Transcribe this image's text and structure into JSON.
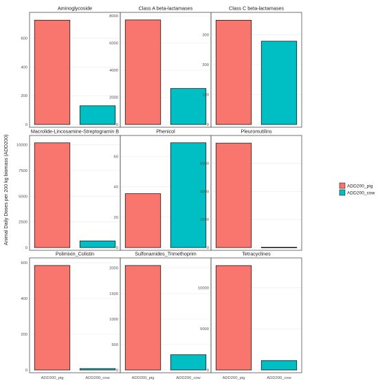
{
  "chart_data": {
    "type": "bar",
    "ylabel": "Animal Daily Doses per 200 kg biomass (ADD200)",
    "categories": [
      "ADD200_pig",
      "ADD200_cow"
    ],
    "colors": {
      "ADD200_pig": "#F8766D",
      "ADD200_cow": "#00BFC4"
    },
    "legend": {
      "position": "right",
      "entries": [
        "ADD200_pig",
        "ADD200_cow"
      ]
    },
    "grid": true,
    "panels": [
      {
        "title": "Aminoglycoside",
        "values": [
          725,
          130
        ],
        "ylim": [
          0,
          760
        ],
        "ticks": [
          0,
          200,
          400,
          600
        ]
      },
      {
        "title": "Class A beta-lactamases",
        "values": [
          7700,
          2650
        ],
        "ylim": [
          0,
          8050
        ],
        "ticks": [
          0,
          2000,
          4000,
          6000,
          8000
        ]
      },
      {
        "title": "Class C beta-lactamases",
        "values": [
          348,
          278
        ],
        "ylim": [
          0,
          365
        ],
        "ticks": [
          0,
          100,
          200,
          300
        ]
      },
      {
        "title": "Macrolide-Lincosamine-Streptogramin B",
        "values": [
          10200,
          650
        ],
        "ylim": [
          0,
          10650
        ],
        "ticks": [
          0,
          2500,
          5000,
          7500,
          10000
        ]
      },
      {
        "title": "Phenicol",
        "values": [
          35.5,
          69
        ],
        "ylim": [
          0,
          72
        ],
        "ticks": [
          0,
          20,
          40,
          60
        ]
      },
      {
        "title": "Pleuromutilins",
        "values": [
          7450,
          30
        ],
        "ylim": [
          0,
          7800
        ],
        "ticks": [
          0,
          2000,
          4000,
          6000
        ]
      },
      {
        "title": "Polimixin_Colistin",
        "values": [
          585,
          8
        ],
        "ylim": [
          0,
          612
        ],
        "ticks": [
          0,
          200,
          400,
          600
        ]
      },
      {
        "title": "Sulfonamides_Trimethoprim",
        "values": [
          2050,
          300
        ],
        "ylim": [
          0,
          2145
        ],
        "ticks": [
          0,
          500,
          1000,
          1500,
          2000
        ]
      },
      {
        "title": "Tetracyclines",
        "values": [
          12700,
          1150
        ],
        "ylim": [
          0,
          13300
        ],
        "ticks": [
          0,
          5000,
          10000
        ]
      }
    ]
  }
}
